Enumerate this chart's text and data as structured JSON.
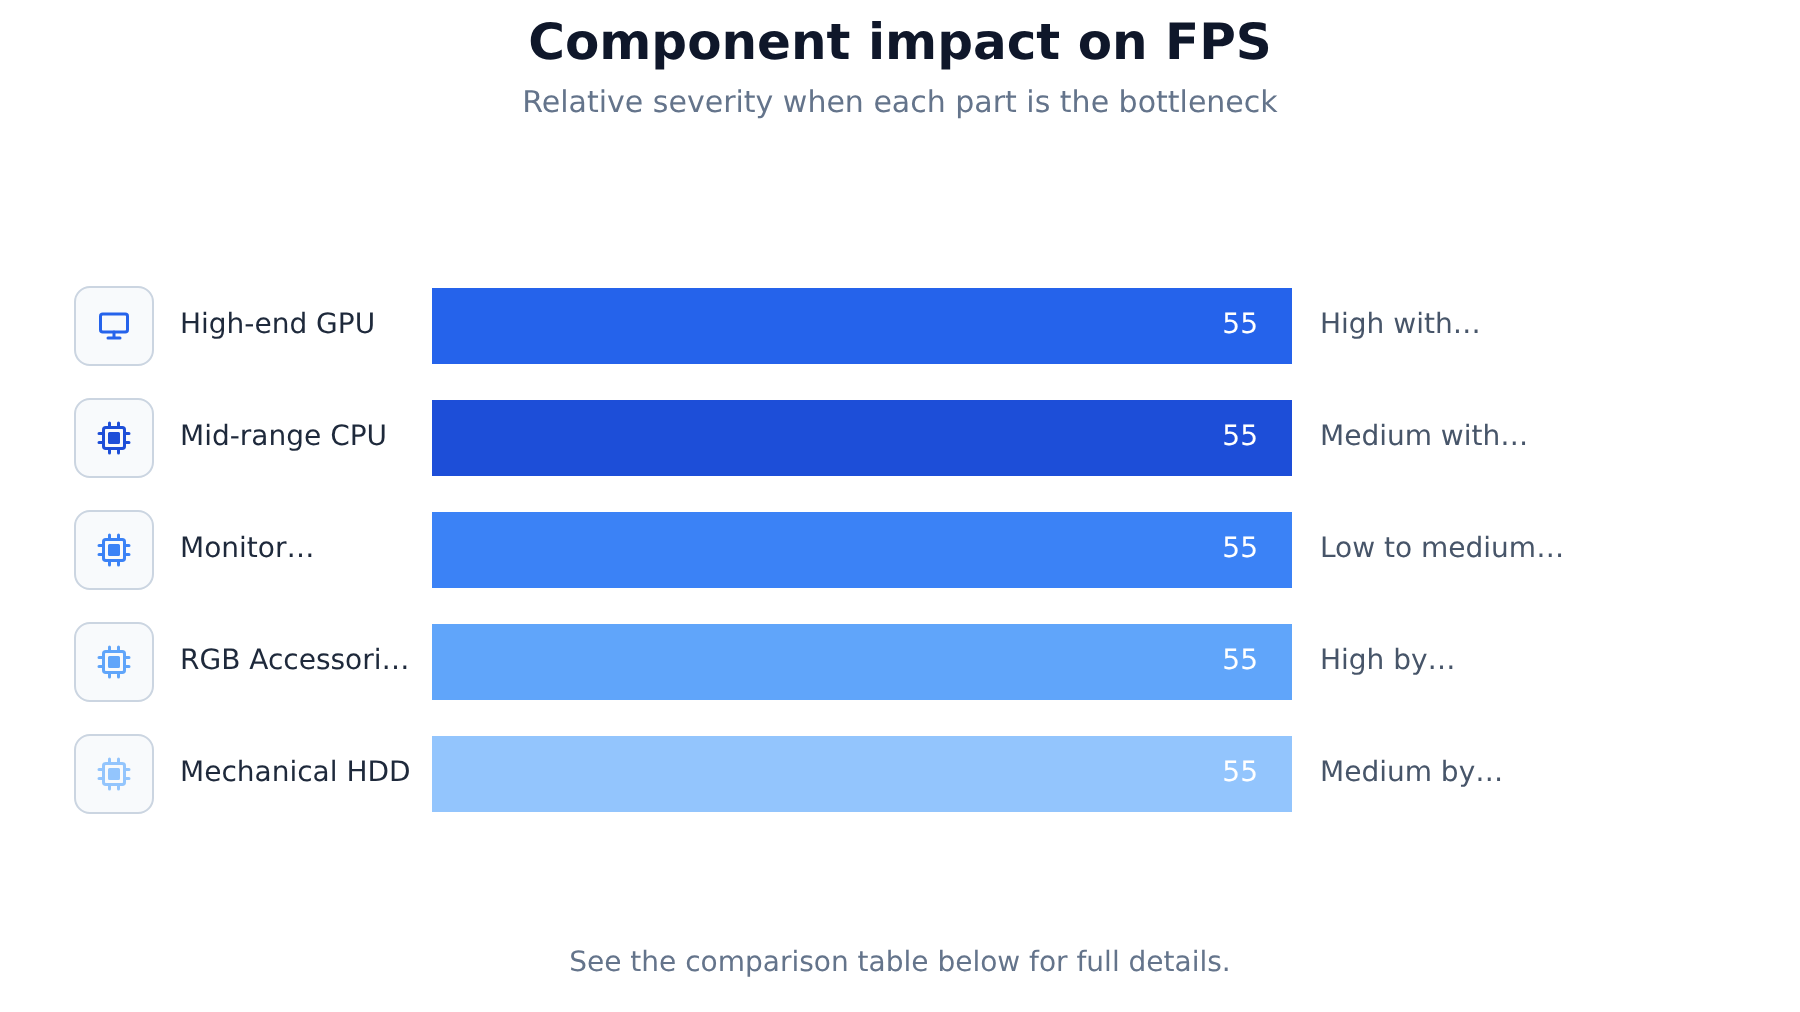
{
  "chart_data": {
    "type": "bar",
    "orientation": "horizontal",
    "title": "Component impact on FPS",
    "subtitle": "Relative severity when each part is the bottleneck",
    "categories": [
      "High-end GPU",
      "Mid-range CPU",
      "Monitor…",
      "RGB Accessori…",
      "Mechanical HDD"
    ],
    "values": [
      55,
      55,
      55,
      55,
      55
    ],
    "colors": [
      "#2563eb",
      "#1d4ed8",
      "#3b82f6",
      "#60a5fa",
      "#93c5fd"
    ],
    "data_labels": true,
    "tick_labels": "y",
    "annotations": [
      "High with…",
      "Medium with…",
      "Low to medium…",
      "High by…",
      "Medium by…",
      "See the comparison table below for full details."
    ]
  }
}
